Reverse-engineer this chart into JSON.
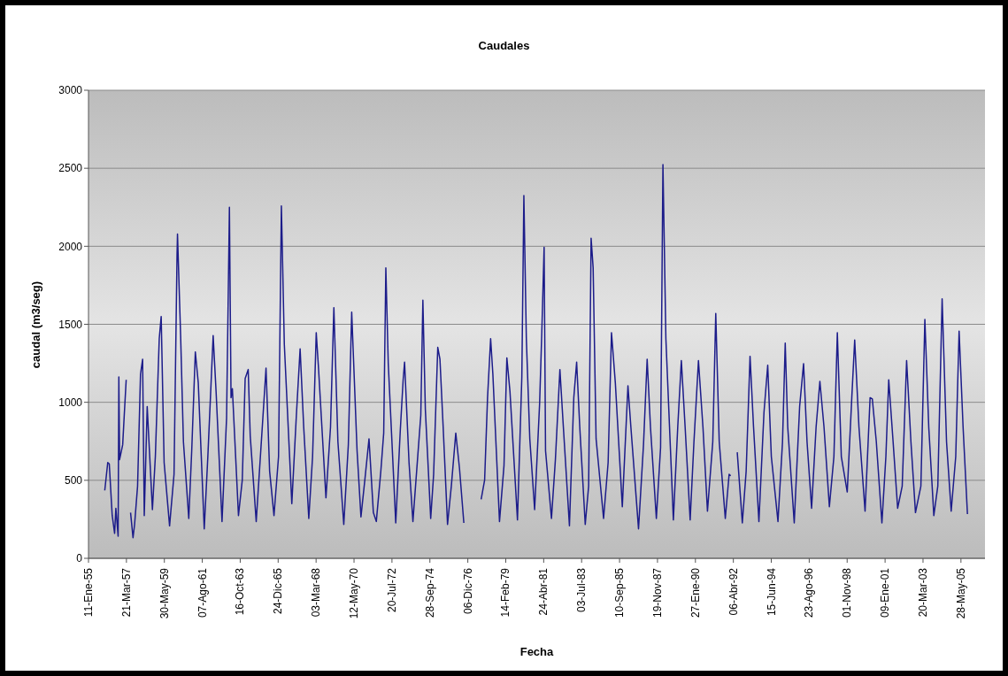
{
  "chart_data": {
    "type": "line",
    "title": "Caudales",
    "xlabel": "Fecha",
    "ylabel": "caudal (m3/seg)",
    "x": [
      "1955-12-20",
      "1956-02-21",
      "1956-03-24",
      "1956-05-25",
      "1956-07-15",
      "1956-08-10",
      "1956-09-27",
      "1956-10-12",
      "1956-10-28",
      "1957-01-01",
      "1957-02-03",
      "1957-03-16",
      "1957-04-15",
      "1957-06-16",
      "1957-08-07",
      "1957-09-09",
      "1957-11-11",
      "1958-01-12",
      "1958-02-25",
      "1958-04-01",
      "1958-06-02",
      "1958-09-20",
      "1958-11-21",
      "1959-02-11",
      "1959-03-24",
      "1959-05-25",
      "1959-09-17",
      "1959-12-20",
      "1960-02-21",
      "1960-03-02",
      "1960-05-07",
      "1960-07-05",
      "1960-10-26",
      "1960-12-27",
      "1961-03-13",
      "1961-05-14",
      "1961-09-17",
      "1961-12-02",
      "1962-03-24",
      "1962-05-25",
      "1962-09-27",
      "1963-01-01",
      "1963-03-02",
      "1963-04-05",
      "1963-05-03",
      "1963-09-09",
      "1963-11-28",
      "1964-01-28",
      "1964-04-01",
      "1964-05-14",
      "1964-09-17",
      "1965-01-23",
      "1965-04-12",
      "1965-06-27",
      "1965-09-27",
      "1966-01-01",
      "1966-03-02",
      "1966-05-03",
      "1966-10-08",
      "1967-01-12",
      "1967-04-01",
      "1967-06-16",
      "1967-10-01",
      "1967-12-20",
      "1968-03-06",
      "1968-04-23",
      "1968-09-27",
      "1969-01-01",
      "1969-03-13",
      "1969-06-06",
      "1969-10-08",
      "1970-01-12",
      "1970-03-24",
      "1970-07-15",
      "1970-10-05",
      "1971-01-01",
      "1971-03-24",
      "1971-06-24",
      "1971-08-25",
      "1971-11-28",
      "1972-01-28",
      "1972-03-13",
      "1972-05-03",
      "1972-10-08",
      "1973-01-12",
      "1973-03-13",
      "1973-04-12",
      "1973-07-15",
      "1973-10-05",
      "1974-01-19",
      "1974-03-20",
      "1974-05-03",
      "1974-06-24",
      "1974-10-15",
      "1974-12-16",
      "1975-03-13",
      "1975-04-28",
      "1975-07-05",
      "1975-10-05",
      "1975-12-24",
      "1976-03-27",
      "1976-06-13",
      "1976-09-13",
      "1977-02-15",
      "1977-09-13",
      "1977-11-25",
      "1978-01-26",
      "1978-04-01",
      "1978-05-18",
      "1978-10-05",
      "1979-01-08",
      "1979-03-09",
      "1979-05-14",
      "1979-10-19",
      "1980-01-19",
      "1980-03-02",
      "1980-04-23",
      "1980-07-05",
      "1980-10-15",
      "1981-01-28",
      "1981-03-13",
      "1981-05-03",
      "1981-06-02",
      "1981-10-05",
      "1981-12-27",
      "1982-04-01",
      "1982-06-13",
      "1982-10-19",
      "1983-01-19",
      "1983-03-20",
      "1983-05-25",
      "1983-09-17",
      "1983-11-28",
      "1984-01-19",
      "1984-03-02",
      "1984-05-03",
      "1984-10-08",
      "1985-01-12",
      "1985-03-24",
      "1985-06-13",
      "1985-11-07",
      "1986-03-06",
      "1986-05-07",
      "1986-10-15",
      "1987-01-28",
      "1987-04-15",
      "1987-06-24",
      "1987-10-26",
      "1988-01-23",
      "1988-03-13",
      "1988-05-14",
      "1988-10-19",
      "1989-01-19",
      "1989-04-05",
      "1989-06-24",
      "1989-10-08",
      "1989-12-27",
      "1990-04-01",
      "1990-07-05",
      "1990-10-08",
      "1991-01-28",
      "1991-04-01",
      "1991-06-13",
      "1991-10-19",
      "1992-01-08",
      "1992-02-10",
      "1992-04-01",
      "1992-06-27",
      "1992-10-12",
      "1993-01-01",
      "1993-03-24",
      "1993-06-06",
      "1993-09-27",
      "1994-01-12",
      "1994-04-01",
      "1994-06-16",
      "1994-11-03",
      "1995-02-07",
      "1995-04-05",
      "1995-05-28",
      "1995-10-12",
      "1996-02-03",
      "1996-04-26",
      "1996-07-08",
      "1996-10-12",
      "1997-01-15",
      "1997-04-05",
      "1997-07-01",
      "1997-10-22",
      "1998-01-26",
      "1998-04-08",
      "1998-07-01",
      "1998-11-03",
      "1999-02-07",
      "1999-04-09",
      "1999-07-08",
      "1999-11-14",
      "2000-02-28",
      "2000-04-15",
      "2000-07-08",
      "2000-11-03",
      "2001-01-26",
      "2001-03-27",
      "2001-06-27",
      "2001-10-01",
      "2002-01-05",
      "2002-04-08",
      "2002-07-08",
      "2002-10-12",
      "2003-02-03",
      "2003-04-28",
      "2003-07-19",
      "2003-11-03",
      "2004-01-26",
      "2004-04-26",
      "2004-07-28",
      "2004-11-03",
      "2005-02-07",
      "2005-04-19",
      "2005-07-12",
      "2005-10-12"
    ],
    "series": [
      {
        "color": "#1c1c8a",
        "values": [
          435,
          614,
          605,
          274,
          160,
          321,
          142,
          1163,
          633,
          728,
          917,
          1144,
          null,
          293,
          132,
          217,
          463,
          1181,
          1276,
          274,
          973,
          312,
          652,
          1408,
          1550,
          614,
          208,
          539,
          1938,
          2079,
          1427,
          747,
          255,
          690,
          1323,
          1125,
          189,
          652,
          1427,
          1068,
          236,
          898,
          2250,
          1030,
          1087,
          274,
          501,
          1153,
          1210,
          785,
          236,
          841,
          1219,
          558,
          274,
          652,
          2259,
          1371,
          350,
          917,
          1342,
          841,
          255,
          652,
          1446,
          1219,
          388,
          841,
          1607,
          747,
          217,
          728,
          1578,
          690,
          265,
          520,
          766,
          293,
          236,
          558,
          803,
          1862,
          1248,
          227,
          822,
          1144,
          1257,
          614,
          236,
          671,
          917,
          1654,
          955,
          255,
          539,
          1352,
          1276,
          841,
          217,
          463,
          803,
          577,
          227,
          null,
          378,
          501,
          1030,
          1408,
          1181,
          236,
          595,
          1285,
          1068,
          246,
          1163,
          2325,
          1408,
          766,
          312,
          992,
          1427,
          1994,
          690,
          255,
          633,
          1210,
          841,
          208,
          1030,
          1257,
          841,
          217,
          463,
          2051,
          1862,
          766,
          255,
          614,
          1446,
          1125,
          331,
          1106,
          841,
          189,
          728,
          1276,
          841,
          255,
          709,
          2524,
          1408,
          246,
          841,
          1267,
          841,
          246,
          747,
          1267,
          841,
          302,
          747,
          1569,
          747,
          255,
          539,
          529,
          null,
          680,
          227,
          558,
          1295,
          841,
          236,
          936,
          1238,
          652,
          236,
          747,
          1380,
          841,
          227,
          973,
          1248,
          747,
          321,
          841,
          1134,
          841,
          331,
          652,
          1446,
          652,
          425,
          1030,
          1399,
          841,
          302,
          1030,
          1021,
          747,
          227,
          652,
          1144,
          747,
          321,
          463,
          1267,
          747,
          293,
          463,
          1531,
          841,
          274,
          463,
          1663,
          747,
          302,
          652,
          1456,
          841,
          284
        ]
      }
    ],
    "xlim": [
      "1955-01-11",
      "2006-10-17"
    ],
    "xticks": [
      {
        "value": "1955-01-11",
        "label": "11-Ene-55"
      },
      {
        "value": "1957-03-21",
        "label": "21-Mar-57"
      },
      {
        "value": "1959-05-30",
        "label": "30-May-59"
      },
      {
        "value": "1961-08-07",
        "label": "07-Ago-61"
      },
      {
        "value": "1963-10-16",
        "label": "16-Oct-63"
      },
      {
        "value": "1965-12-24",
        "label": "24-Dic-65"
      },
      {
        "value": "1968-03-03",
        "label": "03-Mar-68"
      },
      {
        "value": "1970-05-12",
        "label": "12-May-70"
      },
      {
        "value": "1972-07-20",
        "label": "20-Jul-72"
      },
      {
        "value": "1974-09-28",
        "label": "28-Sep-74"
      },
      {
        "value": "1976-12-06",
        "label": "06-Dic-76"
      },
      {
        "value": "1979-02-14",
        "label": "14-Feb-79"
      },
      {
        "value": "1981-04-24",
        "label": "24-Abr-81"
      },
      {
        "value": "1983-07-03",
        "label": "03-Jul-83"
      },
      {
        "value": "1985-09-10",
        "label": "10-Sep-85"
      },
      {
        "value": "1987-11-19",
        "label": "19-Nov-87"
      },
      {
        "value": "1990-01-27",
        "label": "27-Ene-90"
      },
      {
        "value": "1992-04-06",
        "label": "06-Abr-92"
      },
      {
        "value": "1994-06-15",
        "label": "15-Jun-94"
      },
      {
        "value": "1996-08-23",
        "label": "23-Ago-96"
      },
      {
        "value": "1998-11-01",
        "label": "01-Nov-98"
      },
      {
        "value": "2001-01-09",
        "label": "09-Ene-01"
      },
      {
        "value": "2003-03-20",
        "label": "20-Mar-03"
      },
      {
        "value": "2005-05-28",
        "label": "28-May-05"
      }
    ],
    "ylim": [
      0,
      3000
    ],
    "yticks": [
      0,
      500,
      1000,
      1500,
      2000,
      2500,
      3000
    ],
    "grid": "y",
    "line_style": "solid"
  }
}
